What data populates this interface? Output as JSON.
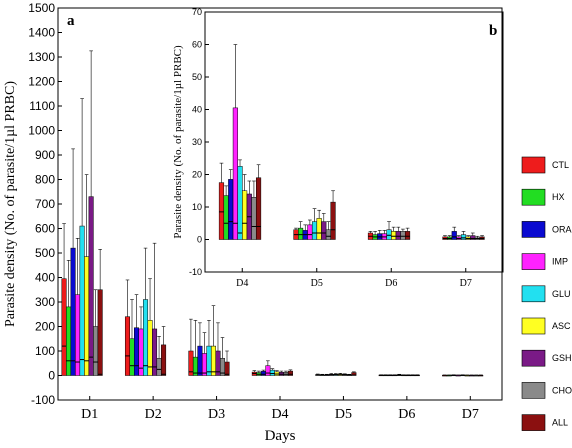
{
  "colors": {
    "CTL": "#ee1c1c",
    "HX": "#22dd22",
    "ORA": "#0a0ad0",
    "IMP": "#ff22ff",
    "GLU": "#22e0f0",
    "ASC": "#ffff22",
    "GSH": "#7a1a86",
    "CHO": "#8a8a8a",
    "ALL": "#8b1010"
  },
  "legend": {
    "items": [
      "CTL",
      "HX",
      "ORA",
      "IMP",
      "GLU",
      "ASC",
      "GSH",
      "CHO",
      "ALL"
    ]
  },
  "chart_data": [
    {
      "type": "bar",
      "panel_label": "a",
      "title": "",
      "xlabel": "Days",
      "ylabel": "Parasite density (No. of parasite/1µl PRBC)",
      "ylim": [
        -100,
        1500
      ],
      "yticks": [
        "-100",
        "0",
        "100",
        "200",
        "300",
        "400",
        "500",
        "600",
        "700",
        "800",
        "900",
        "1000",
        "1100",
        "1200",
        "1300",
        "1400",
        "1500"
      ],
      "categories": [
        "D1",
        "D2",
        "D3",
        "D4",
        "D5",
        "D6",
        "D7"
      ],
      "series": [
        {
          "name": "CTL",
          "values": [
            395,
            240,
            100,
            14,
            4,
            2,
            1
          ],
          "upper": [
            620,
            390,
            230,
            20,
            6,
            3,
            2
          ],
          "median": [
            120,
            80,
            15,
            8,
            2,
            1,
            1
          ]
        },
        {
          "name": "HX",
          "values": [
            280,
            150,
            75,
            12,
            3,
            2,
            1
          ],
          "upper": [
            470,
            310,
            225,
            18,
            5,
            3,
            2
          ],
          "median": [
            60,
            40,
            10,
            5,
            2,
            1,
            1
          ]
        },
        {
          "name": "ORA",
          "values": [
            520,
            195,
            120,
            17,
            3,
            2,
            2
          ],
          "upper": [
            925,
            330,
            215,
            22,
            5,
            3,
            3
          ],
          "median": [
            60,
            40,
            10,
            5,
            2,
            1,
            1
          ]
        },
        {
          "name": "IMP",
          "values": [
            330,
            190,
            90,
            40,
            5,
            2,
            1
          ],
          "upper": [
            560,
            280,
            175,
            60,
            8,
            3,
            2
          ],
          "median": [
            55,
            30,
            10,
            10,
            2,
            1,
            1
          ]
        },
        {
          "name": "GLU",
          "values": [
            610,
            310,
            120,
            22,
            5,
            3,
            2
          ],
          "upper": [
            1130,
            520,
            225,
            28,
            8,
            5,
            3
          ],
          "median": [
            65,
            40,
            15,
            8,
            3,
            1,
            1
          ]
        },
        {
          "name": "ASC",
          "values": [
            485,
            225,
            120,
            15,
            6,
            2,
            1
          ],
          "upper": [
            820,
            395,
            285,
            20,
            9,
            3,
            2
          ],
          "median": [
            60,
            35,
            15,
            6,
            3,
            1,
            1
          ]
        },
        {
          "name": "GSH",
          "values": [
            730,
            190,
            100,
            13,
            5,
            2,
            1
          ],
          "upper": [
            1325,
            540,
            215,
            18,
            7,
            3,
            2
          ],
          "median": [
            75,
            35,
            15,
            5,
            2,
            1,
            1
          ]
        },
        {
          "name": "CHO",
          "values": [
            200,
            70,
            70,
            13,
            3,
            2,
            1
          ],
          "upper": [
            350,
            160,
            155,
            18,
            5,
            3,
            2
          ],
          "median": [
            55,
            25,
            10,
            5,
            2,
            1,
            1
          ]
        },
        {
          "name": "ALL",
          "values": [
            350,
            125,
            55,
            18,
            12,
            2,
            1
          ],
          "upper": [
            515,
            200,
            100,
            23,
            15,
            3,
            2
          ],
          "median": [
            5,
            5,
            5,
            5,
            2,
            1,
            1
          ]
        }
      ]
    },
    {
      "type": "bar",
      "panel_label": "b",
      "title": "",
      "xlabel": "",
      "ylabel": "Parasite density (No. of parasite/1µl PRBC)",
      "ylim": [
        -10,
        70
      ],
      "yticks": [
        "-10",
        "0",
        "10",
        "20",
        "30",
        "40",
        "50",
        "60",
        "70"
      ],
      "categories": [
        "D4",
        "D5",
        "D6",
        "D7"
      ],
      "series": [
        {
          "name": "CTL",
          "values": [
            17.5,
            3,
            2,
            0.8
          ],
          "upper": [
            23.5,
            3.5,
            2.5,
            1.2
          ],
          "median": [
            8.5,
            1.5,
            1,
            0.3
          ]
        },
        {
          "name": "HX",
          "values": [
            13.5,
            3.5,
            1.5,
            0.8
          ],
          "upper": [
            16.5,
            5.5,
            2.5,
            1.2
          ],
          "median": [
            5,
            1.5,
            0.8,
            0.3
          ]
        },
        {
          "name": "ORA",
          "values": [
            18.5,
            2.8,
            1.8,
            2.5
          ],
          "upper": [
            21.5,
            4.5,
            2.8,
            3.8
          ],
          "median": [
            5.5,
            1.5,
            0.8,
            0.8
          ]
        },
        {
          "name": "IMP",
          "values": [
            40.5,
            4.5,
            1.8,
            0.8
          ],
          "upper": [
            60,
            6,
            2.8,
            1.2
          ],
          "median": [
            5,
            1.5,
            0.8,
            0.3
          ]
        },
        {
          "name": "GLU",
          "values": [
            22.5,
            5.5,
            3,
            1.5
          ],
          "upper": [
            24.5,
            9.5,
            5.5,
            2.5
          ],
          "median": [
            2,
            2,
            1.3,
            0.5
          ]
        },
        {
          "name": "ASC",
          "values": [
            15,
            6.5,
            2.5,
            0.8
          ],
          "upper": [
            20,
            9,
            3.8,
            1.2
          ],
          "median": [
            5,
            2,
            1,
            0.3
          ]
        },
        {
          "name": "GSH",
          "values": [
            14,
            5.5,
            2.5,
            1.2
          ],
          "upper": [
            18,
            8,
            3.8,
            2
          ],
          "median": [
            7,
            2,
            1,
            0.3
          ]
        },
        {
          "name": "CHO",
          "values": [
            13,
            3,
            2.5,
            0.5
          ],
          "upper": [
            18,
            5.5,
            3.2,
            1
          ],
          "median": [
            4,
            1,
            1,
            0.3
          ]
        },
        {
          "name": "ALL",
          "values": [
            19,
            11.5,
            2.5,
            0.8
          ],
          "upper": [
            23,
            15,
            3.5,
            1.2
          ],
          "median": [
            4,
            3,
            1,
            0.3
          ]
        }
      ]
    }
  ]
}
